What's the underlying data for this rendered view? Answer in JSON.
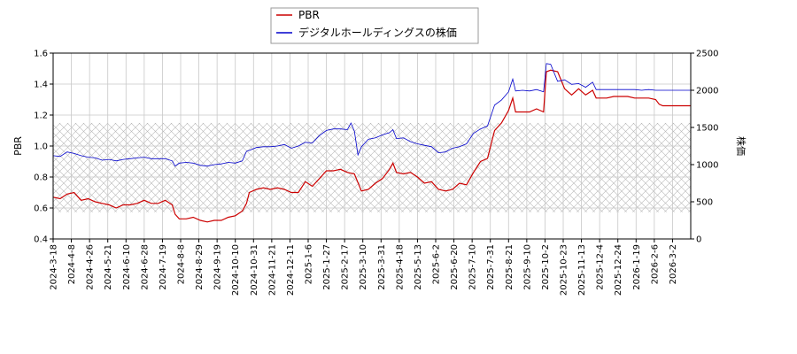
{
  "chart_data": {
    "type": "line",
    "ylabel_left": "PBR",
    "ylabel_right": "株価",
    "ylim_left": [
      0.4,
      1.6
    ],
    "ylim_right": [
      0,
      2500
    ],
    "yticks_left": [
      "0.4",
      "0.6",
      "0.8",
      "1.0",
      "1.2",
      "1.4",
      "1.6"
    ],
    "yticks_right": [
      "0",
      "500",
      "1000",
      "1500",
      "2000",
      "2500"
    ],
    "xticks": [
      "2024-3-18",
      "2024-4-8",
      "2024-4-26",
      "2024-5-21",
      "2024-6-10",
      "2024-6-28",
      "2024-7-19",
      "2024-8-8",
      "2024-8-29",
      "2024-9-19",
      "2024-10-10",
      "2024-10-31",
      "2024-11-21",
      "2024-12-11",
      "2025-1-6",
      "2025-1-27",
      "2025-2-17",
      "2025-3-10",
      "2025-3-31",
      "2025-4-18",
      "2025-5-13",
      "2025-6-2",
      "2025-6-20",
      "2025-7-10",
      "2025-7-31",
      "2025-8-21",
      "2025-9-10",
      "2025-10-2",
      "2025-10-23",
      "2025-11-13",
      "2025-12-4",
      "2025-12-24",
      "2026-1-19",
      "2026-2-6",
      "2026-3-2"
    ],
    "grid": true,
    "legend_placement": "top-center",
    "band": {
      "axis": "right",
      "low": 360,
      "high": 1560
    },
    "series": [
      {
        "name": "PBR",
        "axis": "left",
        "color": "#cc0000",
        "points": [
          [
            0,
            0.67
          ],
          [
            1,
            0.66
          ],
          [
            2,
            0.69
          ],
          [
            3,
            0.7
          ],
          [
            4,
            0.65
          ],
          [
            5,
            0.66
          ],
          [
            6,
            0.64
          ],
          [
            7,
            0.63
          ],
          [
            8,
            0.62
          ],
          [
            9,
            0.6
          ],
          [
            10,
            0.62
          ],
          [
            11,
            0.62
          ],
          [
            12,
            0.63
          ],
          [
            13,
            0.65
          ],
          [
            14,
            0.63
          ],
          [
            15,
            0.63
          ],
          [
            16,
            0.65
          ],
          [
            17,
            0.62
          ],
          [
            17.4,
            0.56
          ],
          [
            18,
            0.53
          ],
          [
            19,
            0.53
          ],
          [
            20,
            0.54
          ],
          [
            21,
            0.52
          ],
          [
            22,
            0.51
          ],
          [
            23,
            0.52
          ],
          [
            24,
            0.52
          ],
          [
            25,
            0.54
          ],
          [
            26,
            0.55
          ],
          [
            27,
            0.58
          ],
          [
            27.6,
            0.63
          ],
          [
            28,
            0.7
          ],
          [
            29,
            0.72
          ],
          [
            30,
            0.73
          ],
          [
            31,
            0.72
          ],
          [
            32,
            0.73
          ],
          [
            33,
            0.72
          ],
          [
            34,
            0.7
          ],
          [
            35,
            0.7
          ],
          [
            36,
            0.77
          ],
          [
            37,
            0.74
          ],
          [
            38,
            0.79
          ],
          [
            39,
            0.84
          ],
          [
            40,
            0.84
          ],
          [
            41,
            0.85
          ],
          [
            42,
            0.83
          ],
          [
            43,
            0.82
          ],
          [
            44,
            0.71
          ],
          [
            45,
            0.72
          ],
          [
            46,
            0.76
          ],
          [
            47,
            0.79
          ],
          [
            48,
            0.85
          ],
          [
            48.5,
            0.89
          ],
          [
            49,
            0.83
          ],
          [
            50,
            0.82
          ],
          [
            51,
            0.83
          ],
          [
            52,
            0.8
          ],
          [
            53,
            0.76
          ],
          [
            54,
            0.77
          ],
          [
            55,
            0.72
          ],
          [
            56,
            0.71
          ],
          [
            57,
            0.72
          ],
          [
            58,
            0.76
          ],
          [
            59,
            0.75
          ],
          [
            60,
            0.83
          ],
          [
            61,
            0.9
          ],
          [
            62,
            0.92
          ],
          [
            63,
            1.1
          ],
          [
            64,
            1.15
          ],
          [
            65,
            1.23
          ],
          [
            65.6,
            1.31
          ],
          [
            66,
            1.22
          ],
          [
            67,
            1.22
          ],
          [
            68,
            1.22
          ],
          [
            69,
            1.24
          ],
          [
            70,
            1.22
          ],
          [
            70.4,
            1.48
          ],
          [
            71,
            1.49
          ],
          [
            72,
            1.48
          ],
          [
            73,
            1.37
          ],
          [
            74,
            1.33
          ],
          [
            75,
            1.37
          ],
          [
            76,
            1.33
          ],
          [
            77,
            1.36
          ],
          [
            77.5,
            1.31
          ],
          [
            78,
            1.31
          ],
          [
            79,
            1.31
          ],
          [
            80,
            1.32
          ],
          [
            81,
            1.32
          ],
          [
            82,
            1.32
          ],
          [
            83,
            1.31
          ],
          [
            84,
            1.31
          ],
          [
            85,
            1.31
          ],
          [
            86,
            1.3
          ],
          [
            86.5,
            1.27
          ],
          [
            87,
            1.26
          ],
          [
            88,
            1.26
          ],
          [
            89,
            1.26
          ],
          [
            90,
            1.26
          ],
          [
            91,
            1.26
          ]
        ]
      },
      {
        "name": "デジタルホールディングスの株価",
        "axis": "right",
        "color": "#0000cc",
        "points": [
          [
            0,
            1120
          ],
          [
            1,
            1110
          ],
          [
            2,
            1170
          ],
          [
            3,
            1150
          ],
          [
            4,
            1120
          ],
          [
            5,
            1100
          ],
          [
            6,
            1090
          ],
          [
            7,
            1060
          ],
          [
            8,
            1070
          ],
          [
            9,
            1050
          ],
          [
            10,
            1070
          ],
          [
            11,
            1080
          ],
          [
            12,
            1090
          ],
          [
            13,
            1100
          ],
          [
            14,
            1080
          ],
          [
            15,
            1080
          ],
          [
            16,
            1080
          ],
          [
            17,
            1050
          ],
          [
            17.4,
            980
          ],
          [
            18,
            1020
          ],
          [
            19,
            1030
          ],
          [
            20,
            1020
          ],
          [
            21,
            990
          ],
          [
            22,
            980
          ],
          [
            23,
            1000
          ],
          [
            24,
            1010
          ],
          [
            25,
            1030
          ],
          [
            26,
            1020
          ],
          [
            27,
            1050
          ],
          [
            27.6,
            1180
          ],
          [
            28,
            1190
          ],
          [
            29,
            1230
          ],
          [
            30,
            1240
          ],
          [
            31,
            1240
          ],
          [
            32,
            1250
          ],
          [
            33,
            1270
          ],
          [
            34,
            1220
          ],
          [
            35,
            1250
          ],
          [
            36,
            1300
          ],
          [
            37,
            1290
          ],
          [
            38,
            1390
          ],
          [
            39,
            1460
          ],
          [
            40,
            1480
          ],
          [
            41,
            1480
          ],
          [
            42,
            1470
          ],
          [
            42.5,
            1560
          ],
          [
            43,
            1450
          ],
          [
            43.5,
            1130
          ],
          [
            44,
            1240
          ],
          [
            45,
            1340
          ],
          [
            46,
            1360
          ],
          [
            47,
            1400
          ],
          [
            48,
            1430
          ],
          [
            48.5,
            1470
          ],
          [
            49,
            1350
          ],
          [
            50,
            1360
          ],
          [
            51,
            1310
          ],
          [
            52,
            1280
          ],
          [
            53,
            1260
          ],
          [
            54,
            1240
          ],
          [
            55,
            1160
          ],
          [
            56,
            1170
          ],
          [
            57,
            1220
          ],
          [
            58,
            1240
          ],
          [
            59,
            1280
          ],
          [
            60,
            1420
          ],
          [
            61,
            1480
          ],
          [
            62,
            1520
          ],
          [
            63,
            1800
          ],
          [
            64,
            1870
          ],
          [
            65,
            1980
          ],
          [
            65.6,
            2150
          ],
          [
            66,
            1990
          ],
          [
            67,
            2000
          ],
          [
            68,
            1990
          ],
          [
            69,
            2010
          ],
          [
            70,
            1980
          ],
          [
            70.4,
            2360
          ],
          [
            71,
            2350
          ],
          [
            72,
            2120
          ],
          [
            73,
            2140
          ],
          [
            74,
            2080
          ],
          [
            75,
            2090
          ],
          [
            76,
            2040
          ],
          [
            77,
            2110
          ],
          [
            77.5,
            2010
          ],
          [
            78,
            2010
          ],
          [
            79,
            2010
          ],
          [
            80,
            2010
          ],
          [
            81,
            2010
          ],
          [
            82,
            2010
          ],
          [
            83,
            2010
          ],
          [
            84,
            2000
          ],
          [
            85,
            2010
          ],
          [
            86,
            2000
          ],
          [
            87,
            2000
          ],
          [
            88,
            2000
          ],
          [
            89,
            2000
          ],
          [
            90,
            2000
          ],
          [
            91,
            2000
          ]
        ]
      }
    ]
  }
}
